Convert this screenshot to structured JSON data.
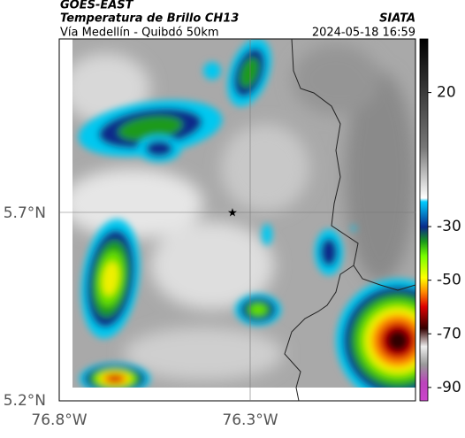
{
  "header": {
    "source": "GOES-EAST",
    "title": "Temperatura de Brillo CH13",
    "org": "SIATA",
    "subtitle": "Vía Medellín - Quibdó 50km",
    "timestamp": "2024-05-18 16:59"
  },
  "axes": {
    "yticks": [
      "5.7°N",
      "5.2°N"
    ],
    "xticks": [
      "76.8°W",
      "76.3°W"
    ]
  },
  "colorbar": {
    "lim": [
      -95,
      40
    ],
    "ticks": [
      20,
      -30,
      -50,
      -70,
      -90
    ]
  }
}
